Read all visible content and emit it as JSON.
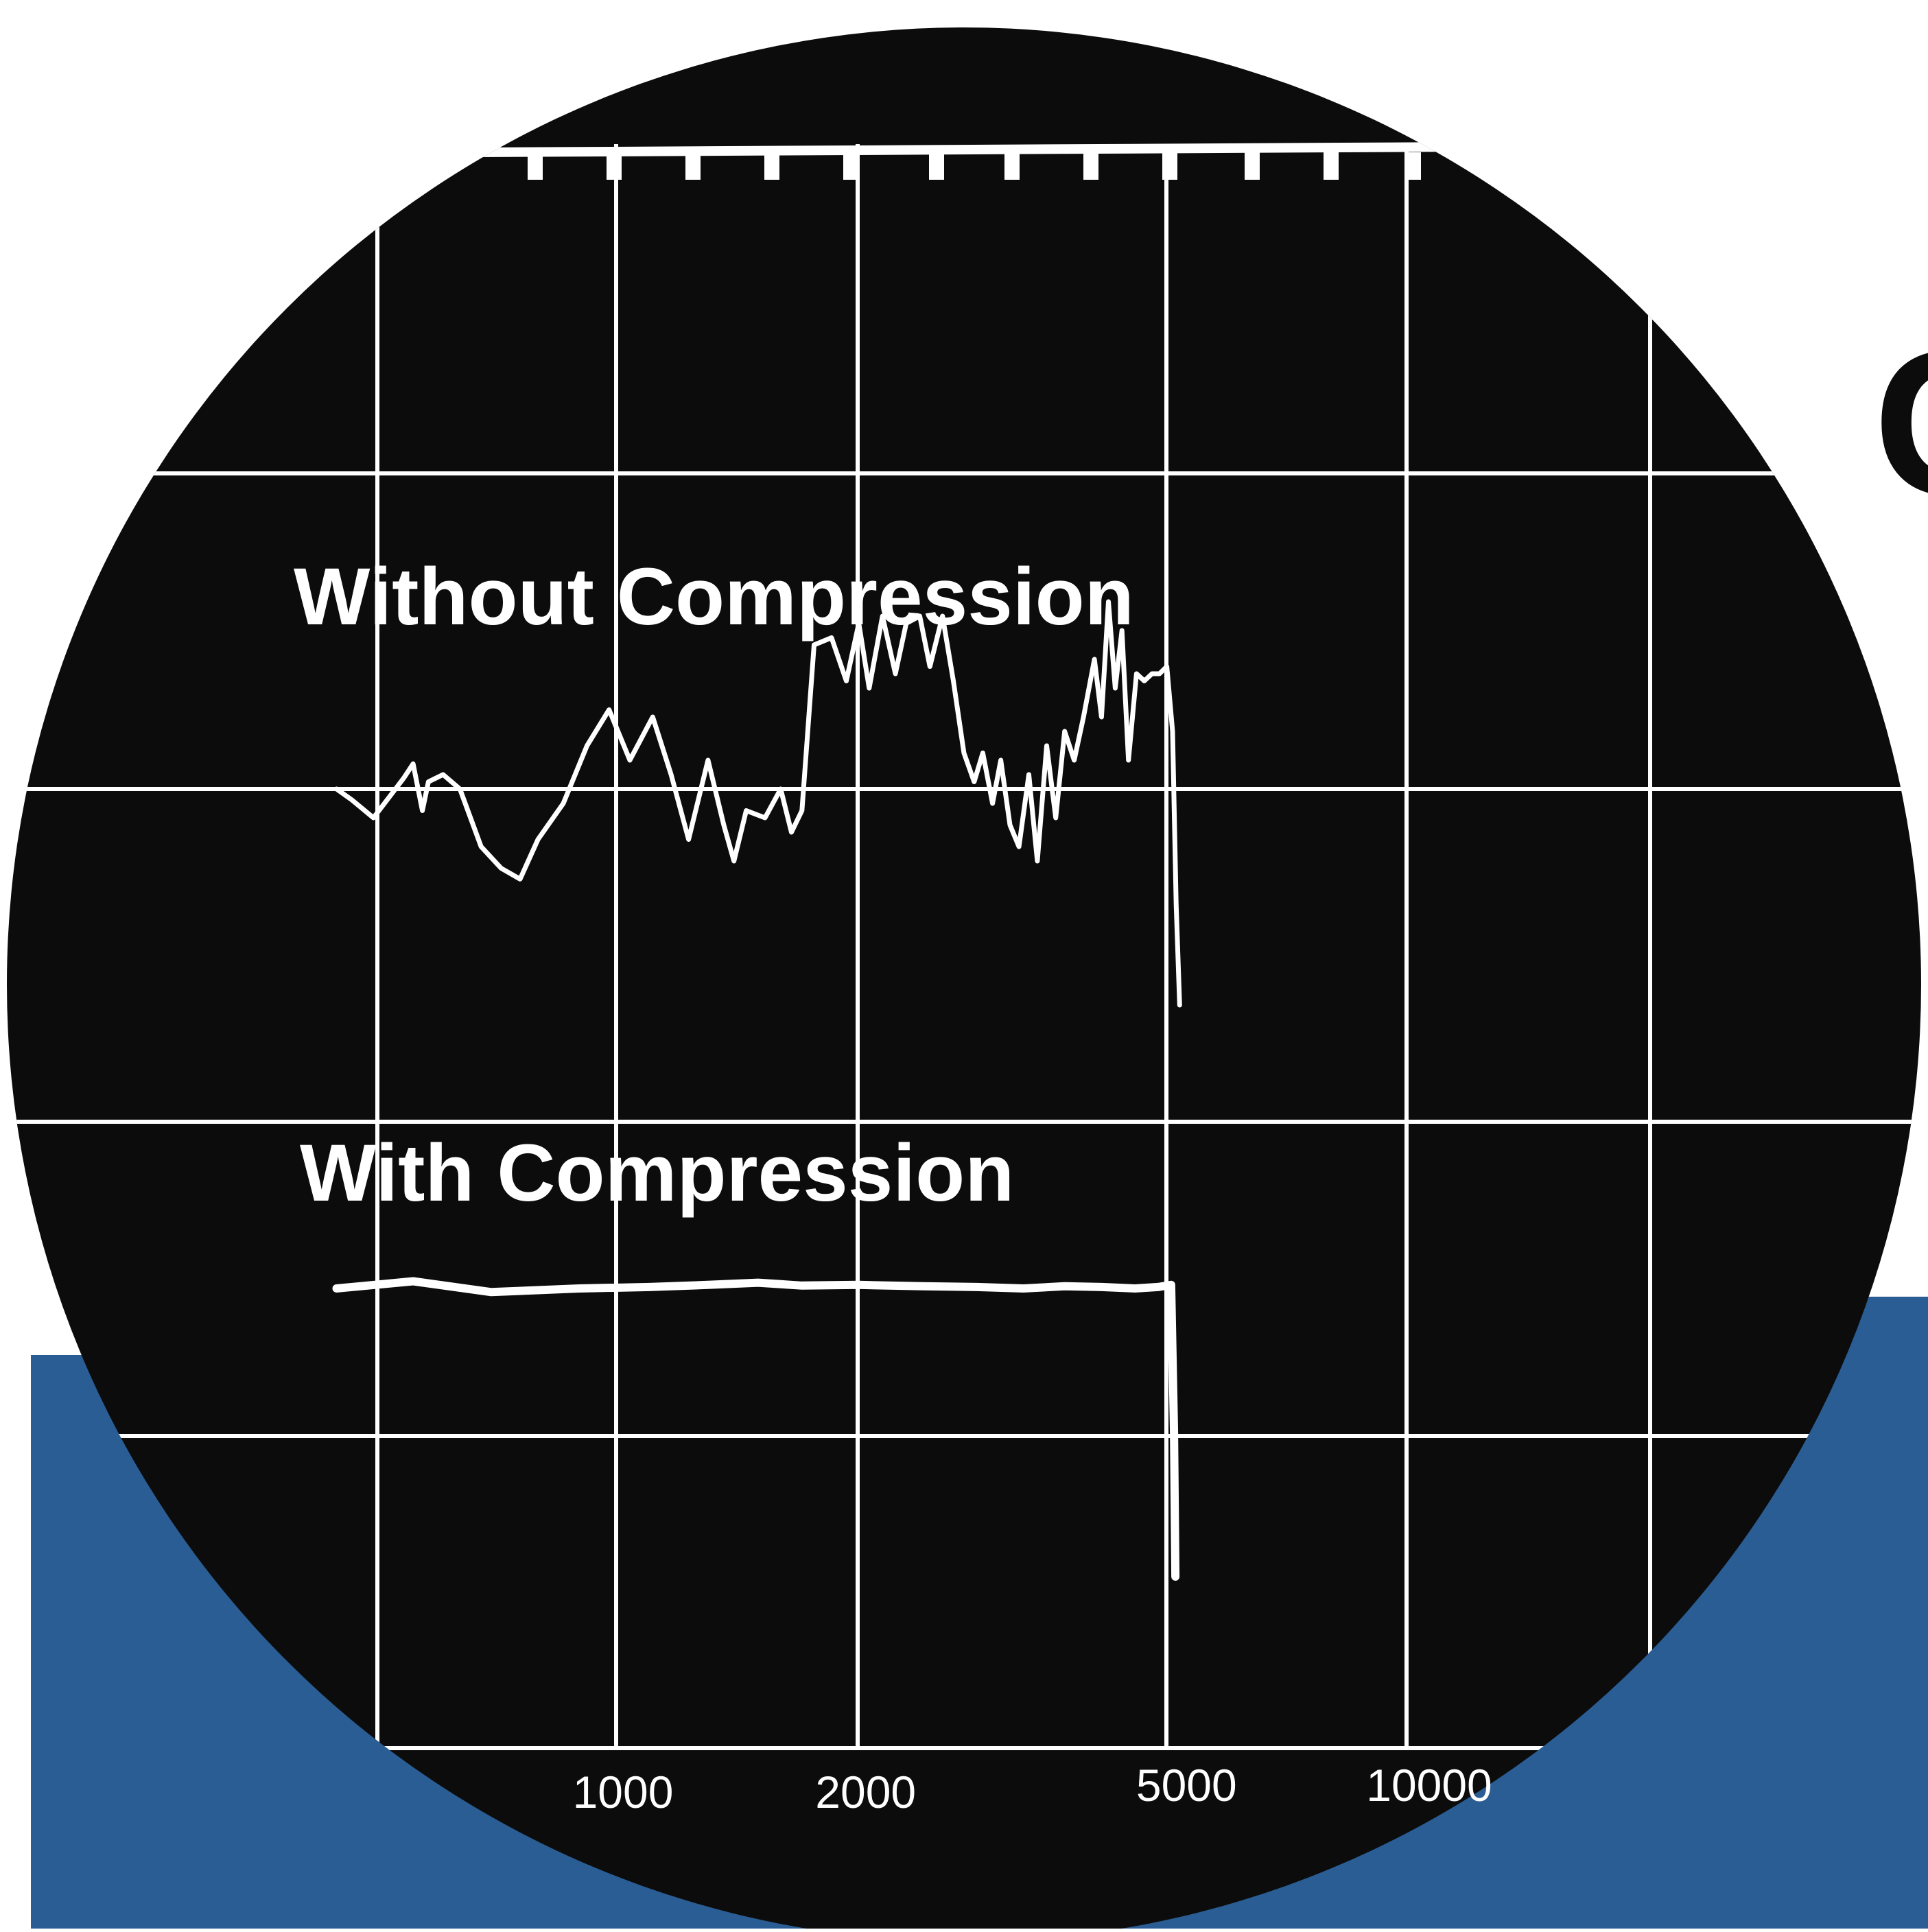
{
  "chart_data": {
    "type": "line",
    "title": "",
    "xlabel": "",
    "ylabel": "",
    "x_scale": "log",
    "grid": true,
    "xticks": [
      1000,
      2000,
      5000,
      10000
    ],
    "xtick_labels": [
      "1000",
      "2000",
      "5000",
      "10000"
    ],
    "colors": {
      "screen": "#0c0c0c",
      "trace": "#ffffff",
      "grid": "#ffffff",
      "accent": "#2a5d94",
      "page": "#ffffff"
    },
    "series": [
      {
        "name": "Without Compression",
        "points": [
          [
            450,
            0.0
          ],
          [
            470,
            -0.15
          ],
          [
            500,
            -0.4
          ],
          [
            520,
            -0.15
          ],
          [
            545,
            0.15
          ],
          [
            560,
            0.35
          ],
          [
            575,
            -0.3
          ],
          [
            585,
            0.1
          ],
          [
            610,
            0.2
          ],
          [
            640,
            0.0
          ],
          [
            680,
            -0.8
          ],
          [
            720,
            -1.1
          ],
          [
            760,
            -1.25
          ],
          [
            800,
            -0.7
          ],
          [
            860,
            -0.2
          ],
          [
            920,
            0.6
          ],
          [
            980,
            1.1
          ],
          [
            1040,
            0.4
          ],
          [
            1110,
            1.0
          ],
          [
            1170,
            0.2
          ],
          [
            1230,
            -0.7
          ],
          [
            1300,
            0.4
          ],
          [
            1360,
            -0.5
          ],
          [
            1400,
            -1.0
          ],
          [
            1450,
            -0.3
          ],
          [
            1530,
            -0.4
          ],
          [
            1600,
            0.0
          ],
          [
            1650,
            -0.6
          ],
          [
            1700,
            -0.3
          ],
          [
            1760,
            2.0
          ],
          [
            1850,
            2.1
          ],
          [
            1930,
            1.5
          ],
          [
            2000,
            2.3
          ],
          [
            2060,
            1.4
          ],
          [
            2140,
            2.4
          ],
          [
            2220,
            1.6
          ],
          [
            2290,
            2.3
          ],
          [
            2380,
            2.4
          ],
          [
            2450,
            1.7
          ],
          [
            2540,
            2.4
          ],
          [
            2620,
            1.5
          ],
          [
            2700,
            0.5
          ],
          [
            2780,
            0.1
          ],
          [
            2850,
            0.5
          ],
          [
            2930,
            -0.2
          ],
          [
            3000,
            0.4
          ],
          [
            3080,
            -0.5
          ],
          [
            3160,
            -0.8
          ],
          [
            3250,
            0.2
          ],
          [
            3330,
            -1.0
          ],
          [
            3420,
            0.6
          ],
          [
            3510,
            -0.4
          ],
          [
            3600,
            0.8
          ],
          [
            3700,
            0.4
          ],
          [
            3800,
            1.0
          ],
          [
            3920,
            1.8
          ],
          [
            4000,
            1.0
          ],
          [
            4080,
            2.6
          ],
          [
            4160,
            1.4
          ],
          [
            4240,
            2.2
          ],
          [
            4320,
            0.4
          ],
          [
            4420,
            1.6
          ],
          [
            4520,
            1.5
          ],
          [
            4620,
            1.6
          ],
          [
            4720,
            1.6
          ],
          [
            4820,
            1.7
          ],
          [
            4900,
            0.8
          ],
          [
            4950,
            -1.6
          ],
          [
            5000,
            -3.0
          ]
        ]
      },
      {
        "name": "With Compression",
        "points": [
          [
            450,
            0.0
          ],
          [
            560,
            0.1
          ],
          [
            700,
            -0.05
          ],
          [
            900,
            0.0
          ],
          [
            1100,
            0.02
          ],
          [
            1300,
            0.05
          ],
          [
            1500,
            0.08
          ],
          [
            1700,
            0.04
          ],
          [
            2000,
            0.05
          ],
          [
            2400,
            0.03
          ],
          [
            2800,
            0.02
          ],
          [
            3200,
            0.0
          ],
          [
            3600,
            0.03
          ],
          [
            4000,
            0.02
          ],
          [
            4400,
            0.0
          ],
          [
            4700,
            0.02
          ],
          [
            4880,
            0.05
          ],
          [
            4920,
            -2.0
          ],
          [
            4940,
            -4.0
          ]
        ]
      }
    ]
  },
  "partial_glyph": "C"
}
